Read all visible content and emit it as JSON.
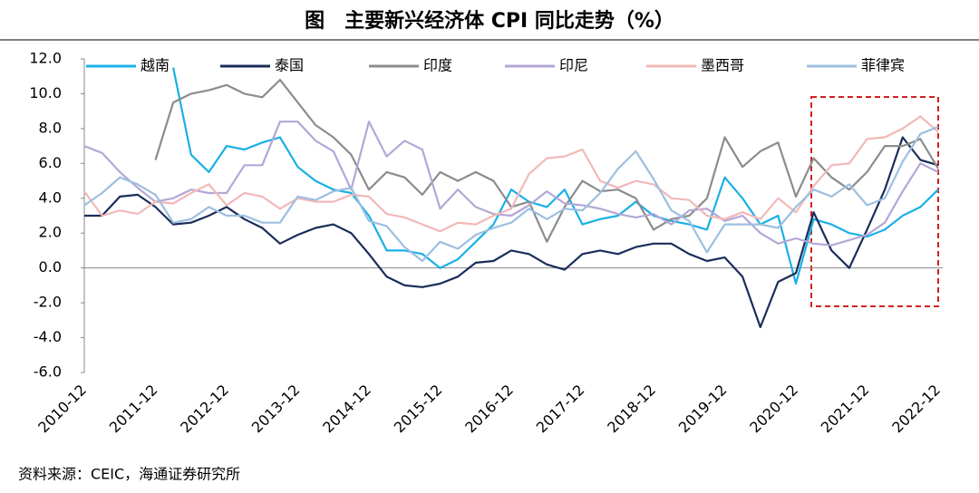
{
  "chart_data": {
    "type": "line",
    "title": "图　主要新兴经济体 CPI 同比走势（%）",
    "source": "资料来源：CEIC，海通证券研究所",
    "categories": [
      "2010-12",
      null,
      null,
      null,
      "2011-12",
      null,
      null,
      null,
      "2012-12",
      null,
      null,
      null,
      "2013-12",
      null,
      null,
      null,
      "2014-12",
      null,
      null,
      null,
      "2015-12",
      null,
      null,
      null,
      "2016-12",
      null,
      null,
      null,
      "2017-12",
      null,
      null,
      null,
      "2018-12",
      null,
      null,
      null,
      "2019-12",
      null,
      null,
      null,
      "2020-12",
      null,
      null,
      null,
      "2021-12",
      null,
      null,
      null,
      "2022-12"
    ],
    "ylim": [
      -6,
      12
    ],
    "yticks": [
      {
        "value": -6,
        "label": "-6.0"
      },
      {
        "value": -4,
        "label": "-4.0"
      },
      {
        "value": -2,
        "label": "-2.0"
      },
      {
        "value": 0,
        "label": "0.0"
      },
      {
        "value": 2,
        "label": "2.0"
      },
      {
        "value": 4,
        "label": "4.0"
      },
      {
        "value": 6,
        "label": "6.0"
      },
      {
        "value": 8,
        "label": "8.0"
      },
      {
        "value": 10,
        "label": "10.0"
      },
      {
        "value": 12,
        "label": "12.0"
      }
    ],
    "legend": "top",
    "series": [
      {
        "name": "越南",
        "color": "#1ab0e6",
        "values": [
          null,
          null,
          null,
          null,
          null,
          11.5,
          6.5,
          5.5,
          7.0,
          6.8,
          7.2,
          7.5,
          5.8,
          5.0,
          4.5,
          4.3,
          3.0,
          1.0,
          1.0,
          0.8,
          0.0,
          0.5,
          1.5,
          2.5,
          4.5,
          3.8,
          3.5,
          4.5,
          2.5,
          2.8,
          3.0,
          3.8,
          3.0,
          2.7,
          2.5,
          2.2,
          5.2,
          4.0,
          2.5,
          3.0,
          -0.9,
          2.8,
          2.5,
          2.0,
          1.8,
          2.2,
          3.0,
          3.5,
          4.5
        ]
      },
      {
        "name": "泰国",
        "color": "#1a2d5a",
        "values": [
          3.0,
          3.0,
          4.1,
          4.2,
          3.5,
          2.5,
          2.6,
          3.0,
          3.5,
          2.8,
          2.3,
          1.4,
          1.9,
          2.3,
          2.5,
          2.0,
          0.8,
          -0.5,
          -1.0,
          -1.1,
          -0.9,
          -0.5,
          0.3,
          0.4,
          1.0,
          0.8,
          0.2,
          -0.1,
          0.8,
          1.0,
          0.8,
          1.2,
          1.4,
          1.4,
          0.8,
          0.4,
          0.6,
          -0.5,
          -3.4,
          -0.8,
          -0.3,
          3.2,
          1.0,
          0.0,
          2.2,
          4.5,
          7.5,
          6.2,
          5.9
        ]
      },
      {
        "name": "印度",
        "color": "#8c8c8c",
        "values": [
          null,
          null,
          null,
          null,
          6.2,
          9.5,
          10.0,
          10.2,
          10.5,
          10.0,
          9.8,
          10.8,
          9.5,
          8.2,
          7.5,
          6.5,
          4.5,
          5.5,
          5.2,
          4.2,
          5.5,
          5.0,
          5.5,
          5.0,
          3.5,
          3.8,
          1.5,
          3.5,
          5.0,
          4.4,
          4.5,
          4.0,
          2.2,
          2.8,
          3.0,
          4.0,
          7.5,
          5.8,
          6.7,
          7.2,
          4.1,
          6.3,
          5.2,
          4.5,
          5.5,
          7.0,
          7.0,
          7.4,
          5.7
        ]
      },
      {
        "name": "印尼",
        "color": "#b4a7d6",
        "values": [
          7.0,
          6.6,
          5.5,
          4.6,
          3.8,
          4.0,
          4.5,
          4.3,
          4.3,
          5.9,
          5.9,
          8.4,
          8.4,
          7.3,
          6.7,
          4.5,
          8.4,
          6.4,
          7.3,
          6.8,
          3.4,
          4.5,
          3.5,
          3.1,
          3.0,
          3.6,
          4.4,
          3.7,
          3.6,
          3.4,
          3.1,
          2.9,
          3.1,
          2.5,
          3.3,
          3.4,
          2.7,
          3.0,
          2.0,
          1.4,
          1.7,
          1.4,
          1.3,
          1.6,
          1.9,
          2.6,
          4.4,
          6.0,
          5.5
        ]
      },
      {
        "name": "墨西哥",
        "color": "#f2b8b8",
        "values": [
          4.4,
          3.0,
          3.3,
          3.1,
          3.8,
          3.7,
          4.3,
          4.8,
          3.6,
          4.3,
          4.1,
          3.4,
          4.0,
          3.8,
          3.8,
          4.2,
          4.1,
          3.1,
          2.9,
          2.5,
          2.1,
          2.6,
          2.5,
          3.0,
          3.4,
          5.4,
          6.3,
          6.4,
          6.8,
          5.0,
          4.6,
          5.0,
          4.8,
          4.0,
          3.9,
          3.0,
          2.8,
          3.2,
          2.8,
          4.0,
          3.2,
          4.7,
          5.9,
          6.0,
          7.4,
          7.5,
          8.0,
          8.7,
          7.8
        ]
      },
      {
        "name": "菲律宾",
        "color": "#9dbfe0",
        "values": [
          3.6,
          4.3,
          5.2,
          4.8,
          4.2,
          2.6,
          2.8,
          3.5,
          3.0,
          3.0,
          2.6,
          2.6,
          4.1,
          3.9,
          4.4,
          4.6,
          2.7,
          2.4,
          1.2,
          0.4,
          1.5,
          1.1,
          1.9,
          2.3,
          2.6,
          3.4,
          2.8,
          3.4,
          3.3,
          4.3,
          5.7,
          6.7,
          5.1,
          3.3,
          2.7,
          0.9,
          2.5,
          2.5,
          2.5,
          2.3,
          3.5,
          4.5,
          4.1,
          4.8,
          3.6,
          4.0,
          6.1,
          7.7,
          8.1
        ]
      }
    ]
  }
}
